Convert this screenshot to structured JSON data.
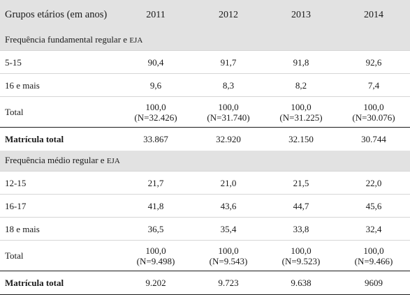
{
  "header": {
    "label": "Grupos etários (em anos)",
    "years": [
      "2011",
      "2012",
      "2013",
      "2014"
    ]
  },
  "sections": [
    {
      "title": "Frequência fundamental regular e",
      "title_suffix": "EJA",
      "rows": [
        {
          "label": "5-15",
          "values": [
            "90,4",
            "91,7",
            "91,8",
            "92,6"
          ]
        },
        {
          "label": "16 e mais",
          "values": [
            "9,6",
            "8,3",
            "8,2",
            "7,4"
          ]
        }
      ],
      "total": {
        "label": "Total",
        "values": [
          "100,0",
          "100,0",
          "100,0",
          "100,0"
        ],
        "n": [
          "(N=32.426)",
          "(N=31.740)",
          "(N=31.225)",
          "(N=30.076)"
        ]
      },
      "enrollment": {
        "label": "Matrícula total",
        "values": [
          "33.867",
          "32.920",
          "32.150",
          "30.744"
        ]
      }
    },
    {
      "title": "Frequência médio regular e",
      "title_suffix": "EJA",
      "rows": [
        {
          "label": "12-15",
          "values": [
            "21,7",
            "21,0",
            "21,5",
            "22,0"
          ]
        },
        {
          "label": "16-17",
          "values": [
            "41,8",
            "43,6",
            "44,7",
            "45,6"
          ]
        },
        {
          "label": "18 e mais",
          "values": [
            "36,5",
            "35,4",
            "33,8",
            "32,4"
          ]
        }
      ],
      "total": {
        "label": "Total",
        "values": [
          "100,0",
          "100,0",
          "100,0",
          "100,0"
        ],
        "n": [
          "(N=9.498)",
          "(N=9.543)",
          "(N=9.523)",
          "(N=9.466)"
        ]
      },
      "enrollment": {
        "label": "Matrícula total",
        "values": [
          "9.202",
          "9.723",
          "9.638",
          "9609"
        ]
      }
    }
  ]
}
